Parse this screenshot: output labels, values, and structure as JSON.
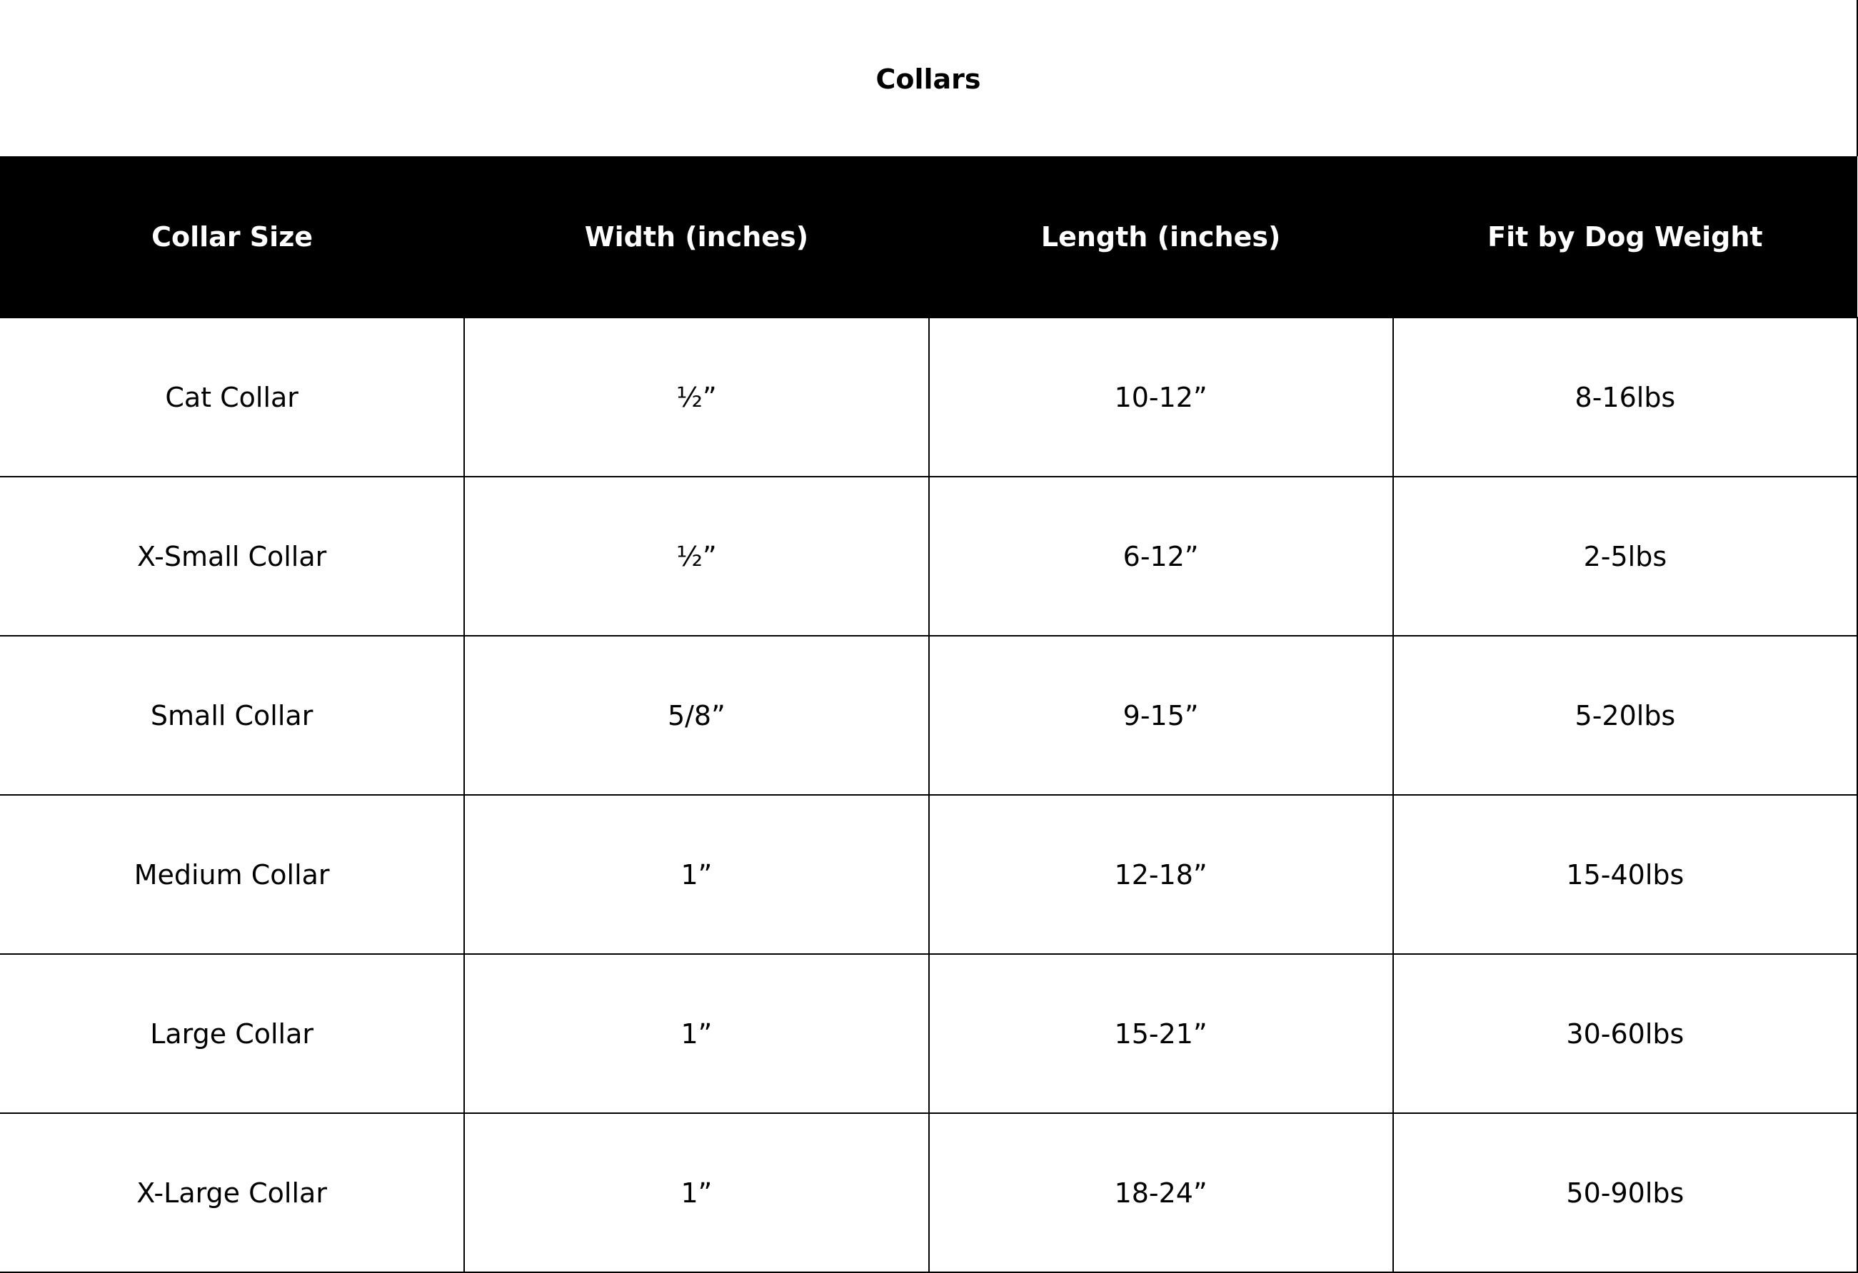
{
  "title": "Collars",
  "columns": [
    "Collar Size",
    "Width (inches)",
    "Length (inches)",
    "Fit by Dog Weight"
  ],
  "rows": [
    [
      "Cat Collar",
      "½”",
      "10-12”",
      "8-16lbs"
    ],
    [
      "X-Small Collar",
      "½”",
      "6-12”",
      "2-5lbs"
    ],
    [
      "Small Collar",
      "5/8”",
      "9-15”",
      "5-20lbs"
    ],
    [
      "Medium Collar",
      "1”",
      "12-18”",
      "15-40lbs"
    ],
    [
      "Large Collar",
      "1”",
      "15-21”",
      "30-60lbs"
    ],
    [
      "X-Large Collar",
      "1”",
      "18-24”",
      "50-90lbs"
    ]
  ]
}
